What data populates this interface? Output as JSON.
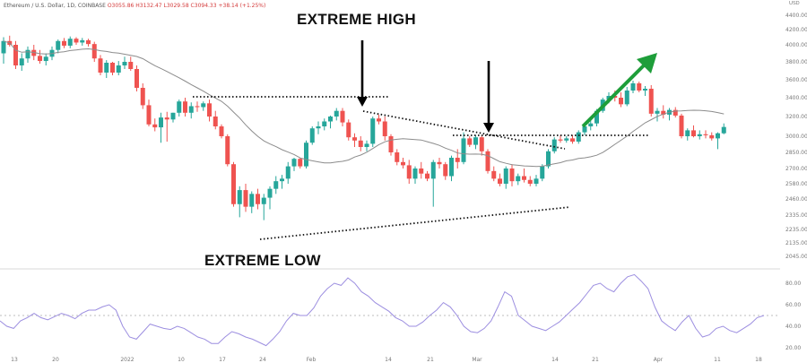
{
  "header": {
    "instrument": "Ethereum / U.S. Dollar, 1D, COINBASE",
    "ohlc": "O3055.86 H3132.47 L3029.58 C3094.33 +38.14 (+1.25%)",
    "currency": "USD"
  },
  "annotations": {
    "extreme_high": "EXTREME HIGH",
    "extreme_low": "EXTREME LOW"
  },
  "colors": {
    "up": "#26a69a",
    "down": "#ef5350",
    "ma": "#8c8c8c",
    "rsi": "#9c8ee0",
    "arrow": "#1e9e3a",
    "trendline": "#111111"
  },
  "chart_data": [
    {
      "type": "candlestick",
      "title": "",
      "y_axis_ticks": [
        4400,
        4200,
        4000,
        3800,
        3600,
        3400,
        3200,
        3000,
        2850,
        2700,
        2580,
        2460,
        2335,
        2235,
        2135,
        2045
      ],
      "y_tick_labels": [
        "4400.00",
        "4200.00",
        "4000.00",
        "3800.00",
        "3600.00",
        "3400.00",
        "3200.00",
        "3000.00",
        "2850.00",
        "2700.00",
        "2580.00",
        "2460.00",
        "2335.00",
        "2235.00",
        "2135.00",
        "2045.00"
      ],
      "x_tick_labels": [
        "13",
        "20",
        "2022",
        "10",
        "17",
        "24",
        "Feb",
        "14",
        "21",
        "Mar",
        "14",
        "21",
        "Apr",
        "11",
        "18"
      ],
      "moving_average": true,
      "candles": [
        {
          "o": 3900,
          "h": 4100,
          "l": 3780,
          "c": 4050
        },
        {
          "o": 4050,
          "h": 4120,
          "l": 3980,
          "c": 4000
        },
        {
          "o": 4000,
          "h": 4050,
          "l": 3720,
          "c": 3760
        },
        {
          "o": 3760,
          "h": 3900,
          "l": 3700,
          "c": 3840
        },
        {
          "o": 3840,
          "h": 3980,
          "l": 3790,
          "c": 3940
        },
        {
          "o": 3940,
          "h": 4000,
          "l": 3820,
          "c": 3870
        },
        {
          "o": 3870,
          "h": 3940,
          "l": 3780,
          "c": 3810
        },
        {
          "o": 3810,
          "h": 3900,
          "l": 3760,
          "c": 3860
        },
        {
          "o": 3860,
          "h": 3980,
          "l": 3820,
          "c": 3940
        },
        {
          "o": 3940,
          "h": 4070,
          "l": 3900,
          "c": 4050
        },
        {
          "o": 4050,
          "h": 4090,
          "l": 3960,
          "c": 3990
        },
        {
          "o": 3990,
          "h": 4110,
          "l": 3960,
          "c": 4080
        },
        {
          "o": 4080,
          "h": 4100,
          "l": 4000,
          "c": 4030
        },
        {
          "o": 4030,
          "h": 4090,
          "l": 3990,
          "c": 4060
        },
        {
          "o": 4060,
          "h": 4080,
          "l": 3980,
          "c": 4010
        },
        {
          "o": 4010,
          "h": 4040,
          "l": 3800,
          "c": 3840
        },
        {
          "o": 3840,
          "h": 3880,
          "l": 3650,
          "c": 3680
        },
        {
          "o": 3680,
          "h": 3820,
          "l": 3620,
          "c": 3790
        },
        {
          "o": 3790,
          "h": 3800,
          "l": 3650,
          "c": 3680
        },
        {
          "o": 3680,
          "h": 3810,
          "l": 3650,
          "c": 3760
        },
        {
          "o": 3760,
          "h": 3860,
          "l": 3720,
          "c": 3800
        },
        {
          "o": 3800,
          "h": 3860,
          "l": 3700,
          "c": 3720
        },
        {
          "o": 3720,
          "h": 3760,
          "l": 3470,
          "c": 3510
        },
        {
          "o": 3510,
          "h": 3560,
          "l": 3280,
          "c": 3320
        },
        {
          "o": 3320,
          "h": 3380,
          "l": 3100,
          "c": 3120
        },
        {
          "o": 3120,
          "h": 3180,
          "l": 3050,
          "c": 3090
        },
        {
          "o": 3090,
          "h": 3240,
          "l": 2940,
          "c": 3190
        },
        {
          "o": 3190,
          "h": 3250,
          "l": 2950,
          "c": 3170
        },
        {
          "o": 3170,
          "h": 3240,
          "l": 3140,
          "c": 3240
        },
        {
          "o": 3240,
          "h": 3380,
          "l": 3200,
          "c": 3360
        },
        {
          "o": 3360,
          "h": 3400,
          "l": 3200,
          "c": 3240
        },
        {
          "o": 3240,
          "h": 3350,
          "l": 3180,
          "c": 3310
        },
        {
          "o": 3310,
          "h": 3360,
          "l": 3250,
          "c": 3300
        },
        {
          "o": 3300,
          "h": 3360,
          "l": 3260,
          "c": 3340
        },
        {
          "o": 3340,
          "h": 3380,
          "l": 3150,
          "c": 3200
        },
        {
          "o": 3200,
          "h": 3260,
          "l": 3070,
          "c": 3100
        },
        {
          "o": 3100,
          "h": 3120,
          "l": 2980,
          "c": 3000
        },
        {
          "o": 3000,
          "h": 3020,
          "l": 2720,
          "c": 2740
        },
        {
          "o": 2740,
          "h": 2760,
          "l": 2400,
          "c": 2420
        },
        {
          "o": 2420,
          "h": 2560,
          "l": 2320,
          "c": 2530
        },
        {
          "o": 2530,
          "h": 2580,
          "l": 2360,
          "c": 2400
        },
        {
          "o": 2400,
          "h": 2520,
          "l": 2350,
          "c": 2500
        },
        {
          "o": 2500,
          "h": 2540,
          "l": 2380,
          "c": 2420
        },
        {
          "o": 2420,
          "h": 2500,
          "l": 2300,
          "c": 2470
        },
        {
          "o": 2470,
          "h": 2560,
          "l": 2380,
          "c": 2540
        },
        {
          "o": 2540,
          "h": 2640,
          "l": 2500,
          "c": 2600
        },
        {
          "o": 2600,
          "h": 2650,
          "l": 2540,
          "c": 2620
        },
        {
          "o": 2620,
          "h": 2760,
          "l": 2580,
          "c": 2720
        },
        {
          "o": 2720,
          "h": 2800,
          "l": 2680,
          "c": 2790
        },
        {
          "o": 2790,
          "h": 2800,
          "l": 2700,
          "c": 2720
        },
        {
          "o": 2720,
          "h": 2960,
          "l": 2700,
          "c": 2940
        },
        {
          "o": 2940,
          "h": 3100,
          "l": 2920,
          "c": 3080
        },
        {
          "o": 3080,
          "h": 3150,
          "l": 3020,
          "c": 3100
        },
        {
          "o": 3100,
          "h": 3180,
          "l": 3060,
          "c": 3150
        },
        {
          "o": 3150,
          "h": 3210,
          "l": 3080,
          "c": 3200
        },
        {
          "o": 3200,
          "h": 3290,
          "l": 3160,
          "c": 3260
        },
        {
          "o": 3260,
          "h": 3290,
          "l": 3100,
          "c": 3140
        },
        {
          "o": 3140,
          "h": 3170,
          "l": 2960,
          "c": 2990
        },
        {
          "o": 2990,
          "h": 3030,
          "l": 2900,
          "c": 2960
        },
        {
          "o": 2960,
          "h": 3000,
          "l": 2860,
          "c": 2900
        },
        {
          "o": 2900,
          "h": 2960,
          "l": 2860,
          "c": 2930
        },
        {
          "o": 2930,
          "h": 3200,
          "l": 2900,
          "c": 3180
        },
        {
          "o": 3180,
          "h": 3220,
          "l": 3120,
          "c": 3150
        },
        {
          "o": 3150,
          "h": 3200,
          "l": 2960,
          "c": 3000
        },
        {
          "o": 3000,
          "h": 3020,
          "l": 2820,
          "c": 2850
        },
        {
          "o": 2850,
          "h": 2880,
          "l": 2730,
          "c": 2760
        },
        {
          "o": 2760,
          "h": 2800,
          "l": 2700,
          "c": 2730
        },
        {
          "o": 2730,
          "h": 2780,
          "l": 2580,
          "c": 2620
        },
        {
          "o": 2620,
          "h": 2720,
          "l": 2580,
          "c": 2700
        },
        {
          "o": 2700,
          "h": 2760,
          "l": 2620,
          "c": 2660
        },
        {
          "o": 2660,
          "h": 2680,
          "l": 2600,
          "c": 2620
        },
        {
          "o": 2620,
          "h": 2780,
          "l": 2400,
          "c": 2760
        },
        {
          "o": 2760,
          "h": 2800,
          "l": 2700,
          "c": 2740
        },
        {
          "o": 2740,
          "h": 2760,
          "l": 2610,
          "c": 2640
        },
        {
          "o": 2640,
          "h": 2820,
          "l": 2600,
          "c": 2800
        },
        {
          "o": 2800,
          "h": 2880,
          "l": 2700,
          "c": 2760
        },
        {
          "o": 2760,
          "h": 3040,
          "l": 2740,
          "c": 2980
        },
        {
          "o": 2980,
          "h": 3000,
          "l": 2900,
          "c": 2920
        },
        {
          "o": 2920,
          "h": 3010,
          "l": 2880,
          "c": 2990
        },
        {
          "o": 2990,
          "h": 3010,
          "l": 2820,
          "c": 2860
        },
        {
          "o": 2860,
          "h": 2880,
          "l": 2660,
          "c": 2680
        },
        {
          "o": 2680,
          "h": 2720,
          "l": 2600,
          "c": 2620
        },
        {
          "o": 2620,
          "h": 2660,
          "l": 2560,
          "c": 2580
        },
        {
          "o": 2580,
          "h": 2720,
          "l": 2540,
          "c": 2700
        },
        {
          "o": 2700,
          "h": 2740,
          "l": 2560,
          "c": 2600
        },
        {
          "o": 2600,
          "h": 2660,
          "l": 2570,
          "c": 2640
        },
        {
          "o": 2640,
          "h": 2700,
          "l": 2590,
          "c": 2610
        },
        {
          "o": 2610,
          "h": 2640,
          "l": 2560,
          "c": 2580
        },
        {
          "o": 2580,
          "h": 2650,
          "l": 2560,
          "c": 2620
        },
        {
          "o": 2620,
          "h": 2740,
          "l": 2600,
          "c": 2720
        },
        {
          "o": 2720,
          "h": 2880,
          "l": 2700,
          "c": 2860
        },
        {
          "o": 2860,
          "h": 2990,
          "l": 2840,
          "c": 2970
        },
        {
          "o": 2970,
          "h": 3010,
          "l": 2940,
          "c": 2960
        },
        {
          "o": 2960,
          "h": 3000,
          "l": 2940,
          "c": 2980
        },
        {
          "o": 2980,
          "h": 3010,
          "l": 2930,
          "c": 2950
        },
        {
          "o": 2950,
          "h": 3060,
          "l": 2930,
          "c": 3040
        },
        {
          "o": 3040,
          "h": 3120,
          "l": 3010,
          "c": 3100
        },
        {
          "o": 3100,
          "h": 3160,
          "l": 3060,
          "c": 3130
        },
        {
          "o": 3130,
          "h": 3280,
          "l": 3100,
          "c": 3260
        },
        {
          "o": 3260,
          "h": 3400,
          "l": 3240,
          "c": 3380
        },
        {
          "o": 3380,
          "h": 3460,
          "l": 3340,
          "c": 3420
        },
        {
          "o": 3420,
          "h": 3480,
          "l": 3360,
          "c": 3400
        },
        {
          "o": 3400,
          "h": 3460,
          "l": 3300,
          "c": 3330
        },
        {
          "o": 3330,
          "h": 3520,
          "l": 3310,
          "c": 3480
        },
        {
          "o": 3480,
          "h": 3590,
          "l": 3450,
          "c": 3560
        },
        {
          "o": 3560,
          "h": 3580,
          "l": 3460,
          "c": 3480
        },
        {
          "o": 3480,
          "h": 3530,
          "l": 3420,
          "c": 3500
        },
        {
          "o": 3500,
          "h": 3540,
          "l": 3200,
          "c": 3230
        },
        {
          "o": 3230,
          "h": 3290,
          "l": 3150,
          "c": 3260
        },
        {
          "o": 3260,
          "h": 3320,
          "l": 3180,
          "c": 3220
        },
        {
          "o": 3220,
          "h": 3290,
          "l": 3160,
          "c": 3270
        },
        {
          "o": 3270,
          "h": 3300,
          "l": 3190,
          "c": 3210
        },
        {
          "o": 3210,
          "h": 3230,
          "l": 2980,
          "c": 3000
        },
        {
          "o": 3000,
          "h": 3080,
          "l": 2960,
          "c": 3060
        },
        {
          "o": 3060,
          "h": 3110,
          "l": 2990,
          "c": 3000
        },
        {
          "o": 3000,
          "h": 3060,
          "l": 2970,
          "c": 3020
        },
        {
          "o": 3020,
          "h": 3060,
          "l": 2980,
          "c": 3010
        },
        {
          "o": 3010,
          "h": 3040,
          "l": 2960,
          "c": 2980
        },
        {
          "o": 2980,
          "h": 3040,
          "l": 2880,
          "c": 3030
        },
        {
          "o": 3030,
          "h": 3130,
          "l": 3020,
          "c": 3094
        }
      ],
      "indicator_levels": [
        80,
        60,
        40,
        20
      ],
      "indicator_tick_labels": [
        "80.00",
        "60.00",
        "40.00",
        "20.00"
      ],
      "indicator_dashed_level": 50,
      "indicator_values": [
        45,
        40,
        38,
        45,
        48,
        52,
        48,
        46,
        49,
        52,
        50,
        47,
        52,
        55,
        55,
        58,
        60,
        55,
        40,
        30,
        28,
        35,
        42,
        40,
        38,
        37,
        40,
        38,
        34,
        30,
        28,
        24,
        24,
        30,
        35,
        33,
        30,
        28,
        25,
        22,
        28,
        35,
        45,
        52,
        50,
        50,
        57,
        68,
        75,
        80,
        78,
        85,
        80,
        72,
        68,
        62,
        58,
        54,
        48,
        45,
        40,
        40,
        44,
        50,
        55,
        62,
        58,
        50,
        40,
        35,
        34,
        38,
        45,
        58,
        72,
        68,
        50,
        45,
        40,
        38,
        36,
        40,
        44,
        50,
        56,
        62,
        70,
        78,
        80,
        75,
        72,
        80,
        86,
        88,
        82,
        75,
        58,
        45,
        40,
        36,
        44,
        50,
        38,
        30,
        32,
        38,
        40,
        36,
        34,
        38,
        42,
        48,
        50
      ]
    }
  ]
}
